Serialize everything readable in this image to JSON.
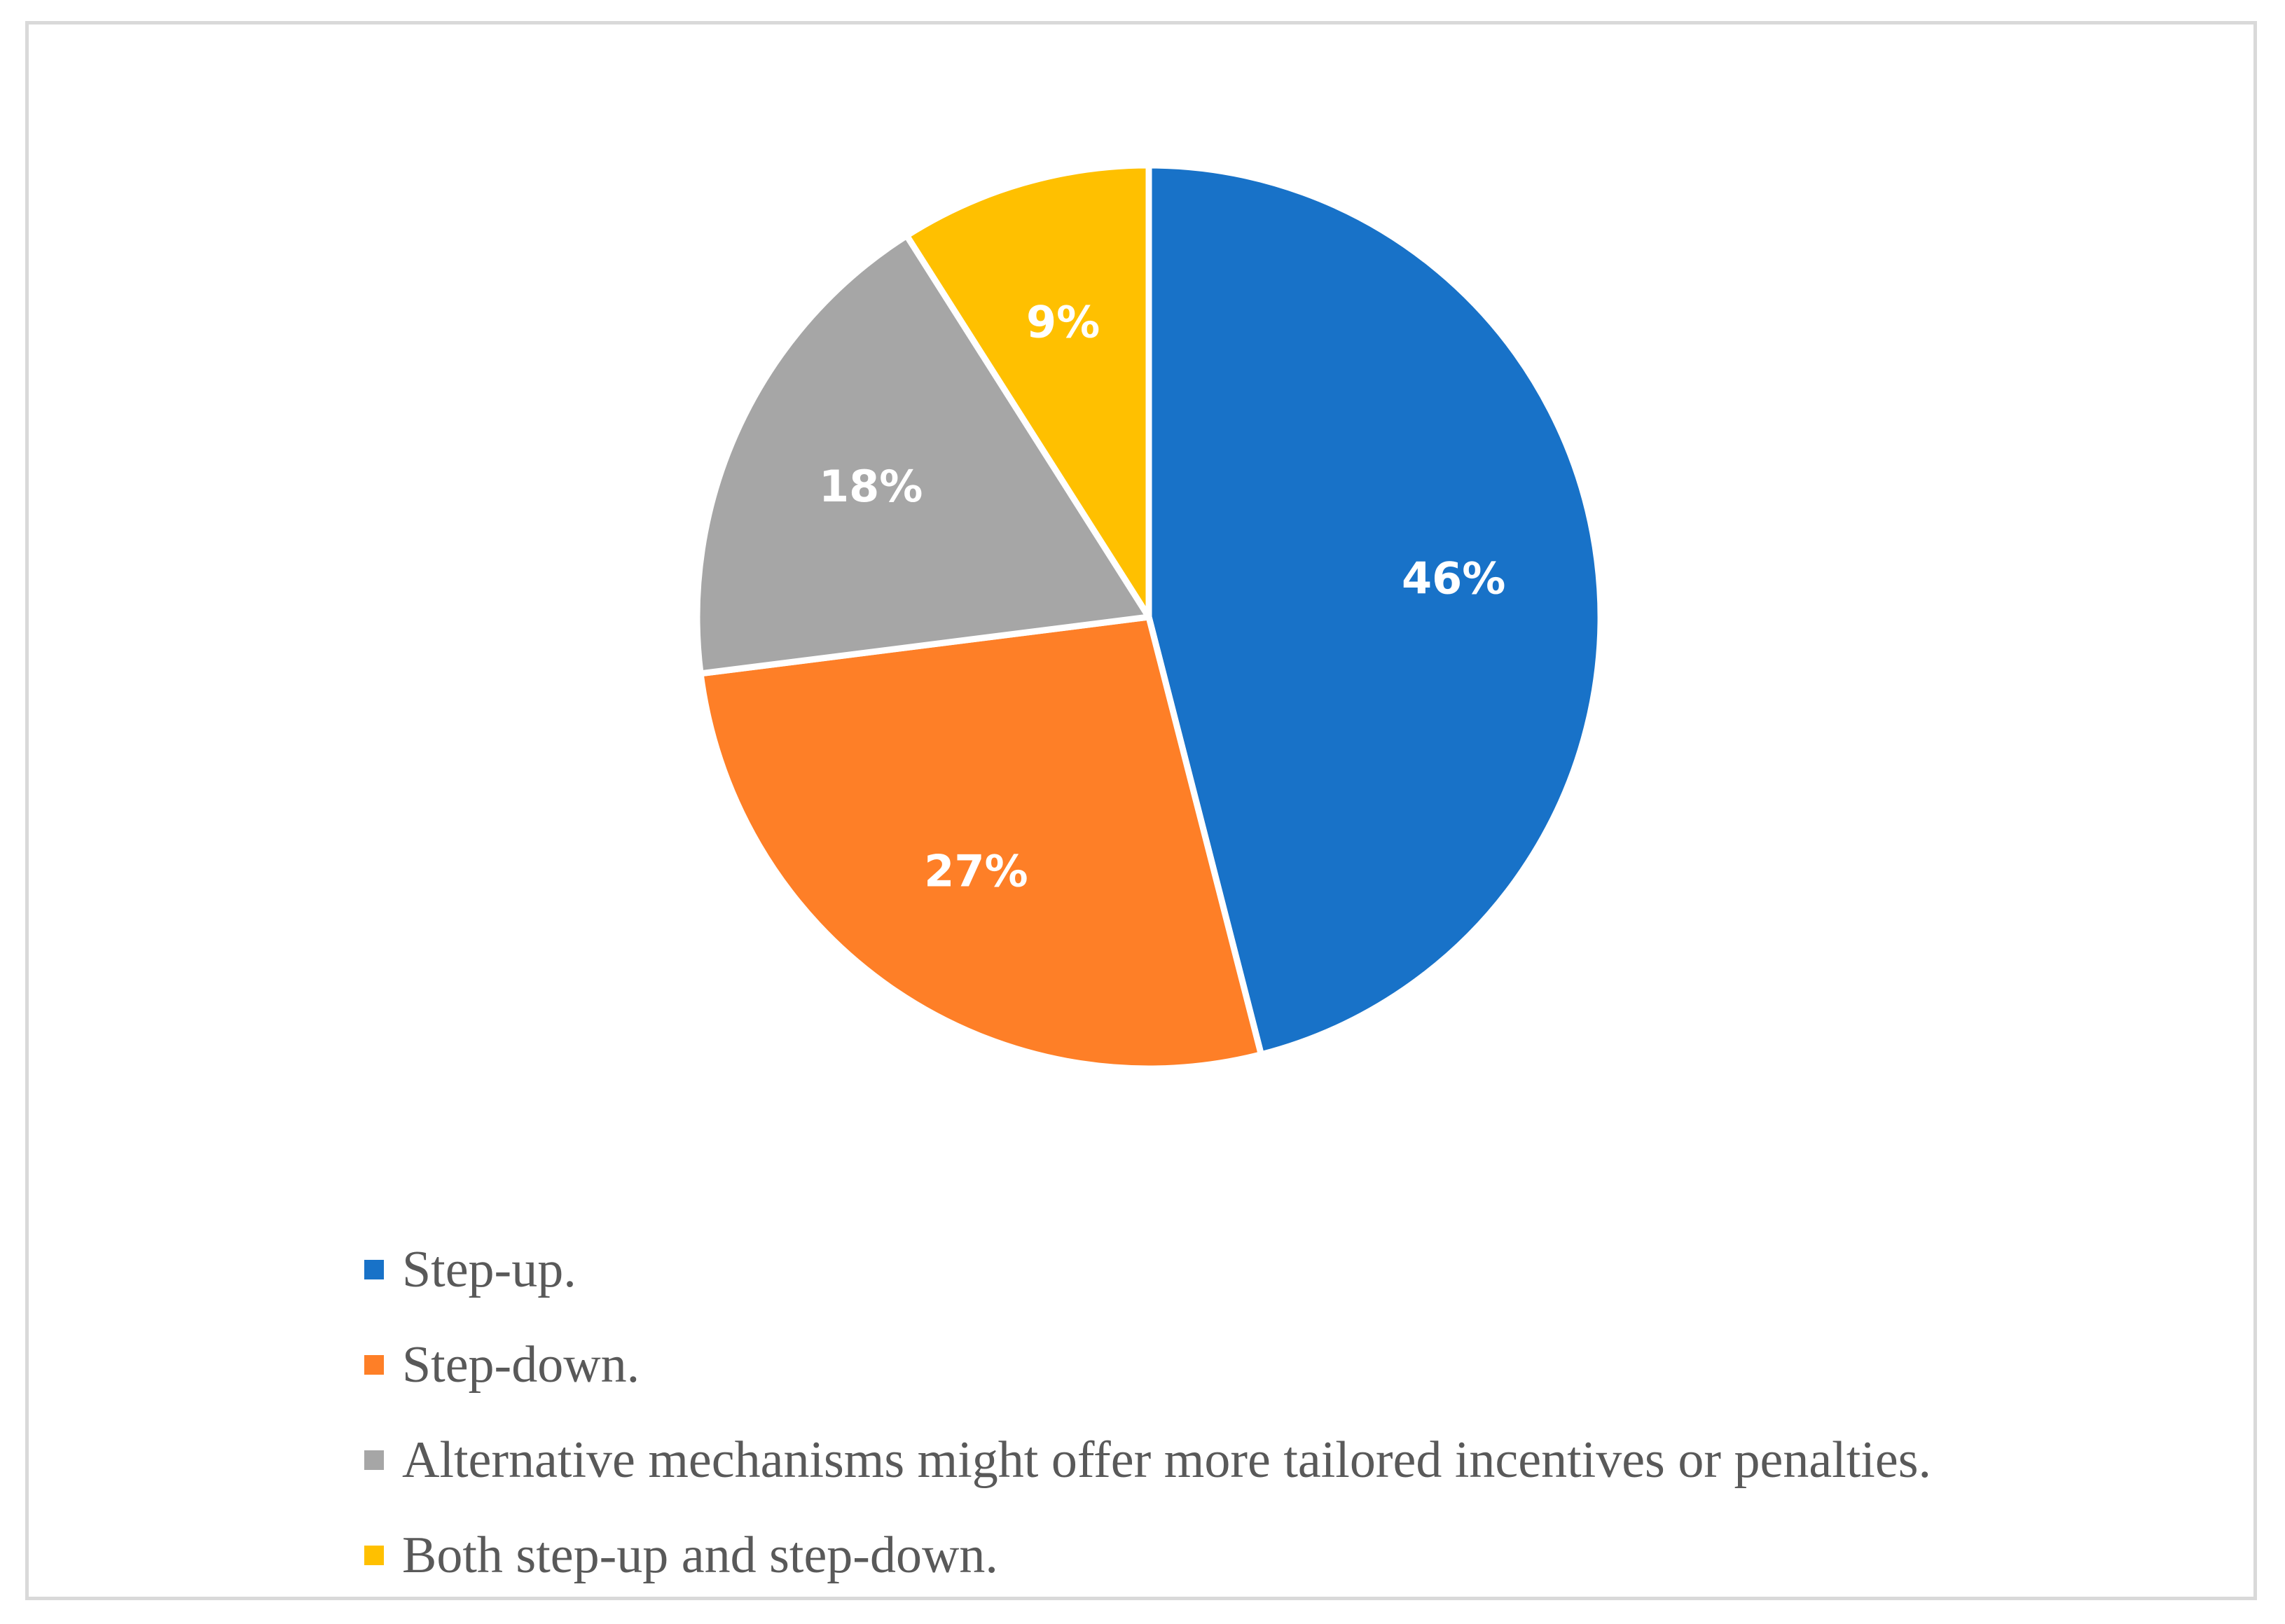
{
  "chart_data": {
    "type": "pie",
    "title": "",
    "categories": [
      "Step-up.",
      "Step-down.",
      "Alternative mechanisms might offer more tailored incentives or penalties.",
      "Both step-up and step-down."
    ],
    "values": [
      46,
      27,
      18,
      9
    ],
    "data_labels": [
      "46%",
      "27%",
      "18%",
      "9%"
    ],
    "colors": [
      "#1872C8",
      "#FE7F27",
      "#A6A6A6",
      "#FFC000"
    ],
    "legend_position": "bottom",
    "start_angle": "12 o'clock",
    "direction": "clockwise"
  }
}
